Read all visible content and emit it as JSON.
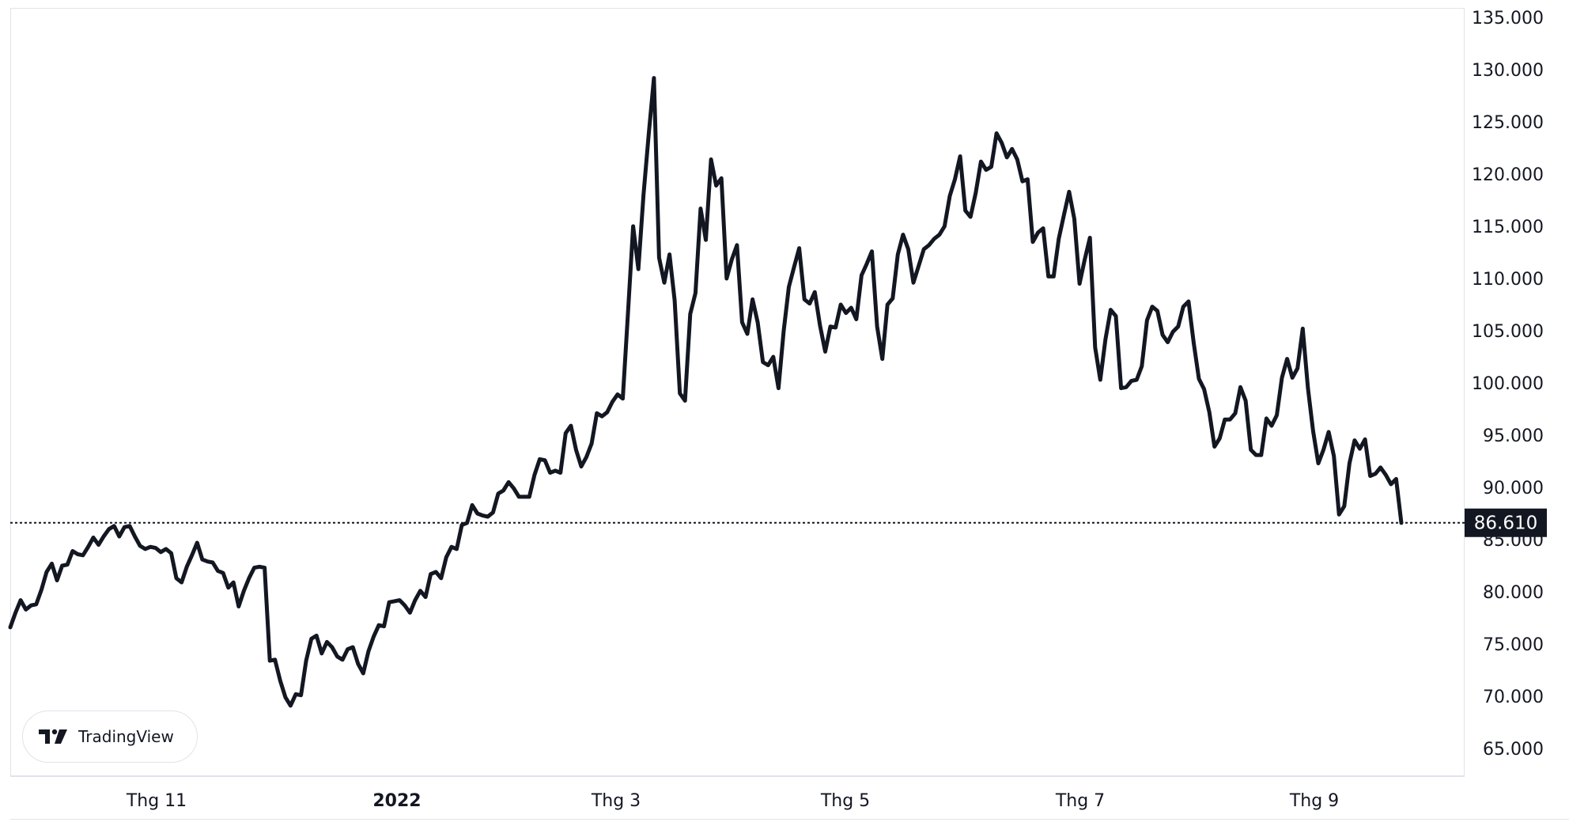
{
  "chart_data": {
    "type": "line",
    "title": "",
    "xlabel": "",
    "ylabel": "",
    "ylim": [
      61000,
      137500
    ],
    "grid": false,
    "x_ticks": [
      "Thg 11",
      "2022",
      "Thg 3",
      "Thg 5",
      "Thg 7",
      "Thg 9"
    ],
    "y_ticks": [
      "135.000",
      "130.000",
      "125.000",
      "120.000",
      "115.000",
      "110.000",
      "105.000",
      "100.000",
      "95.000",
      "90.000",
      "85.000",
      "80.000",
      "75.000",
      "70.000",
      "65.000"
    ],
    "last_price": 86610,
    "last_price_label": "86.610",
    "series": [
      {
        "color": "#131722",
        "values": [
          76600,
          78000,
          79200,
          78300,
          78700,
          78800,
          80200,
          81900,
          82700,
          81100,
          82500,
          82600,
          83900,
          83600,
          83500,
          84300,
          85200,
          84500,
          85300,
          86000,
          86300,
          85300,
          86200,
          86300,
          85300,
          84400,
          84100,
          84300,
          84200,
          83800,
          84100,
          83700,
          81300,
          80900,
          82400,
          83500,
          84700,
          83100,
          82900,
          82800,
          82000,
          81800,
          80400,
          80900,
          78600,
          80100,
          81300,
          82300,
          82400,
          82300,
          73400,
          73500,
          71500,
          69900,
          69100,
          70200,
          70100,
          73400,
          75500,
          75800,
          74100,
          75200,
          74700,
          73800,
          73500,
          74500,
          74700,
          73100,
          72200,
          74300,
          75700,
          76800,
          76700,
          79000,
          79100,
          79200,
          78700,
          78000,
          79200,
          80100,
          79500,
          81700,
          81900,
          81300,
          83300,
          84300,
          84100,
          86400,
          86600,
          88300,
          87500,
          87300,
          87200,
          87600,
          89400,
          89700,
          90500,
          89900,
          89100,
          89100,
          89100,
          91200,
          92700,
          92600,
          91400,
          91600,
          91400,
          95200,
          95900,
          93600,
          92000,
          92900,
          94200,
          97100,
          96800,
          97200,
          98200,
          98900,
          98500,
          106600,
          115000,
          110900,
          118000,
          123800,
          129200,
          112000,
          109600,
          112300,
          107900,
          99000,
          98300,
          106600,
          108600,
          116700,
          113700,
          121400,
          118900,
          119600,
          110000,
          111800,
          113200,
          105800,
          104700,
          108000,
          105800,
          102000,
          101700,
          102500,
          99500,
          105000,
          109200,
          111100,
          112900,
          108000,
          107600,
          108700,
          105500,
          103000,
          105400,
          105300,
          107500,
          106700,
          107200,
          106100,
          110300,
          111400,
          112600,
          105400,
          102300,
          107500,
          108100,
          112300,
          114200,
          112800,
          109600,
          111200,
          112800,
          113200,
          113800,
          114200,
          115000,
          117900,
          119500,
          121700,
          116500,
          115900,
          118200,
          121200,
          120400,
          120700,
          123900,
          123000,
          121600,
          122400,
          121400,
          119300,
          119500,
          113500,
          114400,
          114800,
          110200,
          110200,
          113800,
          116100,
          118300,
          115700,
          109500,
          111800,
          113900,
          103400,
          100300,
          104200,
          107000,
          106400,
          99500,
          99600,
          100200,
          100300,
          101600,
          106000,
          107300,
          106900,
          104600,
          103900,
          104900,
          105400,
          107300,
          107800,
          103800,
          100400,
          99400,
          97200,
          93900,
          94700,
          96500,
          96500,
          97100,
          99600,
          98300,
          93600,
          93100,
          93100,
          96600,
          95900,
          96900,
          100500,
          102300,
          100500,
          101400,
          105200,
          99500,
          95400,
          92300,
          93600,
          95300,
          93000,
          87400,
          88200,
          92300,
          94500,
          93700,
          94600,
          91100,
          91300,
          91900,
          91200,
          90300,
          90800,
          86600
        ]
      }
    ]
  },
  "branding": {
    "logo_text": "TradingView"
  }
}
